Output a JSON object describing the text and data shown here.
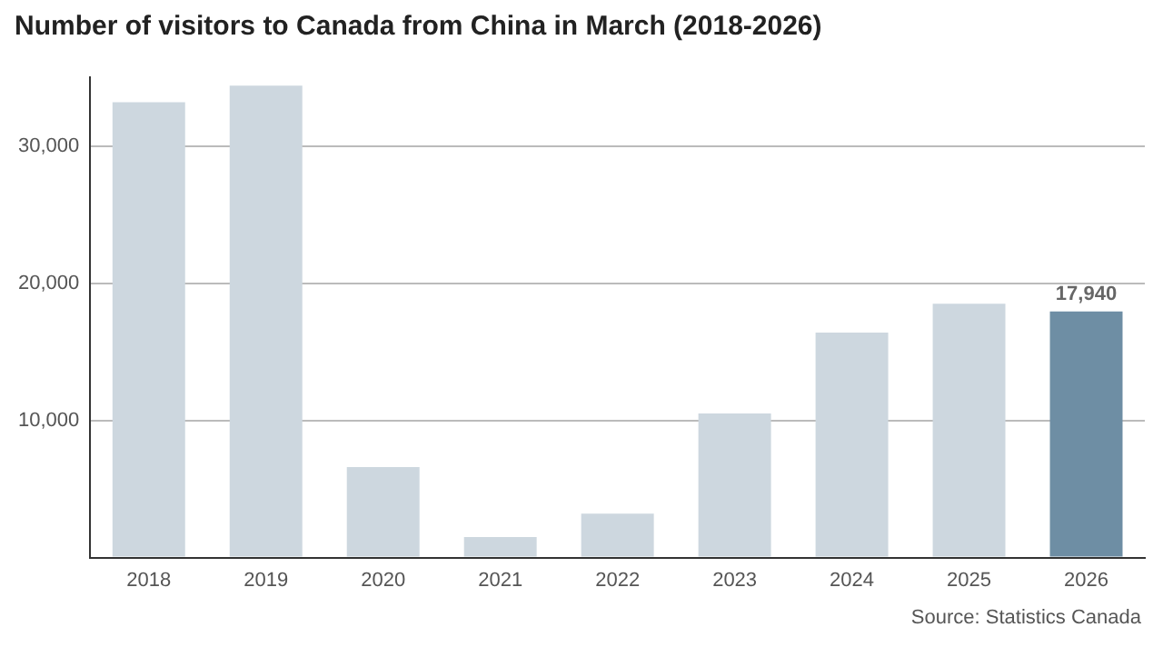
{
  "chart_data": {
    "type": "bar",
    "title": "Number of visitors to Canada from China in March (2018-2026)",
    "categories": [
      "2018",
      "2019",
      "2020",
      "2021",
      "2022",
      "2023",
      "2024",
      "2025",
      "2026"
    ],
    "values": [
      33200,
      34400,
      6600,
      1500,
      3200,
      10500,
      16400,
      18500,
      17940
    ],
    "colors": [
      "#cdd7df",
      "#cdd7df",
      "#cdd7df",
      "#cdd7df",
      "#cdd7df",
      "#cdd7df",
      "#cdd7df",
      "#cdd7df",
      "#6e8ea4"
    ],
    "value_labels": [
      null,
      null,
      null,
      null,
      null,
      null,
      null,
      null,
      "17,940"
    ],
    "ylim": [
      0,
      35000
    ],
    "yticks": [
      {
        "value": 0,
        "label": null
      },
      {
        "value": 10000,
        "label": "10,000"
      },
      {
        "value": 20000,
        "label": "20,000"
      },
      {
        "value": 30000,
        "label": "30,000"
      }
    ],
    "grid": "y",
    "legend": false,
    "annotations": [
      "Source: Statistics Canada"
    ]
  }
}
